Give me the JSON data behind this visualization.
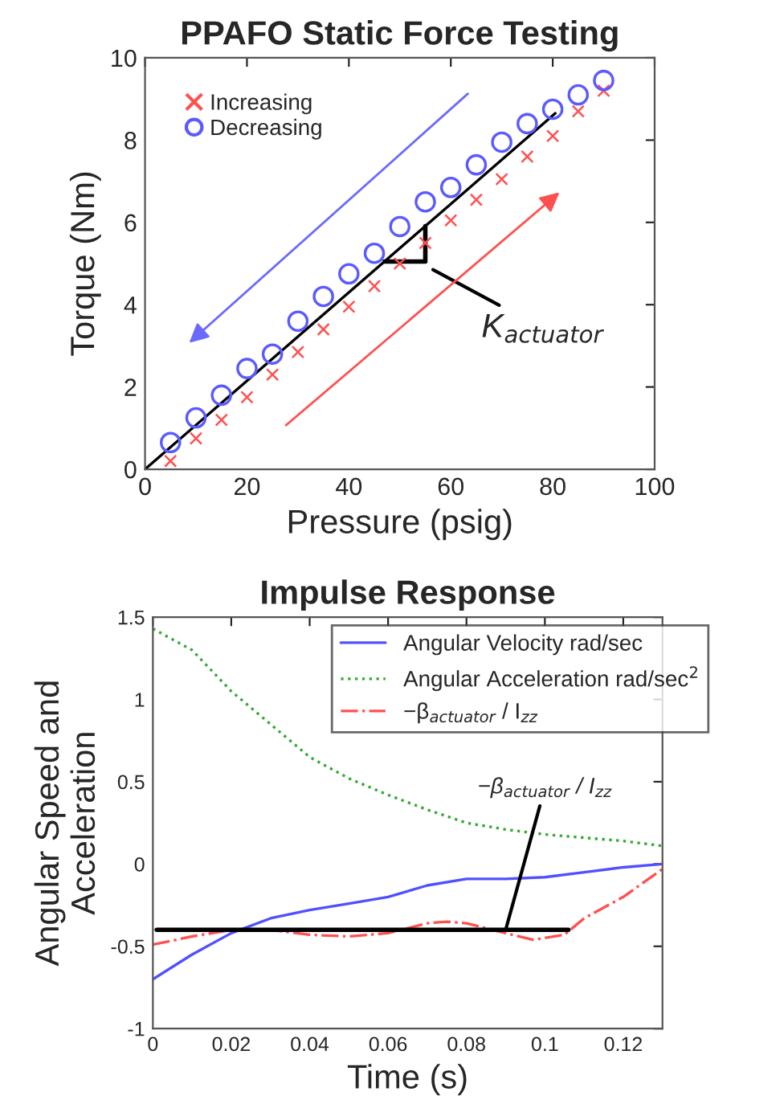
{
  "chart_data": [
    {
      "type": "scatter",
      "title": "PPAFO Static Force Testing",
      "xlabel": "Pressure (psig)",
      "ylabel": "Torque (Nm)",
      "xlim": [
        0,
        100
      ],
      "xticks": [
        0,
        20,
        40,
        60,
        80,
        100
      ],
      "ylim": [
        0,
        10
      ],
      "yticks": [
        0,
        2,
        4,
        6,
        8,
        10
      ],
      "grid": false,
      "legend": "top left",
      "series": [
        {
          "name": "Increasing",
          "color": "#ff5050",
          "marker": "cross",
          "x": [
            5,
            10,
            15,
            20,
            25,
            30,
            35,
            40,
            45,
            50,
            55,
            60,
            65,
            70,
            75,
            80,
            85,
            90
          ],
          "values": [
            0.2,
            0.75,
            1.2,
            1.75,
            2.3,
            2.85,
            3.4,
            3.95,
            4.45,
            5.0,
            5.5,
            6.05,
            6.55,
            7.05,
            7.6,
            8.1,
            8.7,
            9.2
          ]
        },
        {
          "name": "Decreasing",
          "color": "#5a5aff",
          "marker": "circle",
          "x": [
            5,
            10,
            15,
            20,
            25,
            30,
            35,
            40,
            45,
            50,
            55,
            60,
            65,
            70,
            75,
            80,
            85,
            90
          ],
          "values": [
            0.65,
            1.25,
            1.8,
            2.45,
            2.8,
            3.6,
            4.2,
            4.75,
            5.25,
            5.9,
            6.5,
            6.85,
            7.4,
            7.95,
            8.4,
            8.75,
            9.1,
            9.45
          ]
        },
        {
          "type": "line",
          "color": "#000000",
          "line_style": "solid",
          "x": [
            0,
            80.5
          ],
          "values": [
            0,
            8.65
          ]
        }
      ],
      "annotations": [
        "K$_{actuator}$"
      ]
    },
    {
      "type": "line",
      "title": "Impulse Response",
      "xlabel": "Time (s)",
      "ylabel": "Angular Speed and\nAcceleration",
      "xlim": [
        0,
        0.13
      ],
      "xticks": [
        0,
        0.02,
        0.04,
        0.06,
        0.08,
        0.1,
        0.12
      ],
      "ylim": [
        -1,
        1.5
      ],
      "yticks": [
        -1,
        -0.5,
        0,
        0.5,
        1,
        1.5
      ],
      "grid": false,
      "legend": "top right",
      "series": [
        {
          "name": "Angular Velocity rad/sec",
          "color": "#5050ff",
          "line_style": "solid",
          "x": [
            0,
            0.01,
            0.02,
            0.03,
            0.04,
            0.05,
            0.06,
            0.07,
            0.08,
            0.09,
            0.1,
            0.11,
            0.12,
            0.13
          ],
          "values": [
            -0.7,
            -0.55,
            -0.42,
            -0.33,
            -0.28,
            -0.24,
            -0.2,
            -0.13,
            -0.09,
            -0.09,
            -0.08,
            -0.05,
            -0.02,
            0
          ]
        },
        {
          "name": "Angular Acceleration rad/sec$^{2}$",
          "color": "#33aa33",
          "line_style": "dotted",
          "x": [
            0,
            0.01,
            0.02,
            0.03,
            0.04,
            0.05,
            0.06,
            0.07,
            0.08,
            0.09,
            0.1,
            0.11,
            0.12,
            0.13
          ],
          "values": [
            1.43,
            1.3,
            1.05,
            0.85,
            0.65,
            0.52,
            0.42,
            0.33,
            0.25,
            0.21,
            0.18,
            0.16,
            0.14,
            0.11
          ]
        },
        {
          "name": "−β$_{actuator}$ / I$_{zz}$",
          "color": "#ff5050",
          "line_style": "dashed",
          "x": [
            0,
            0.01,
            0.02,
            0.03,
            0.04,
            0.05,
            0.06,
            0.07,
            0.075,
            0.08,
            0.09,
            0.097,
            0.105,
            0.11,
            0.12,
            0.13
          ],
          "values": [
            -0.49,
            -0.44,
            -0.4,
            -0.4,
            -0.43,
            -0.44,
            -0.42,
            -0.36,
            -0.35,
            -0.36,
            -0.42,
            -0.46,
            -0.43,
            -0.33,
            -0.2,
            -0.03
          ]
        },
        {
          "color": "#000000",
          "line_style": "solid",
          "x": [
            0.001,
            0.106
          ],
          "values": [
            -0.4,
            -0.4
          ]
        }
      ],
      "annotations": [
        {
          "text": "−β$_{actuator}$ / I$_{zz}$",
          "x": 0.09,
          "y": -0.4
        }
      ]
    }
  ]
}
